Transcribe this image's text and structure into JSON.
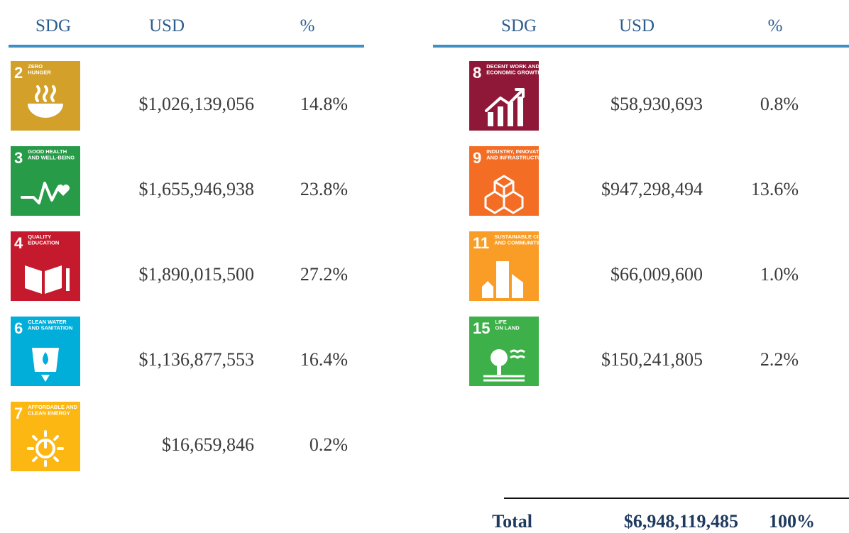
{
  "left": {
    "header": [
      "SDG",
      "USD",
      "%"
    ],
    "rows": [
      {
        "number": "2",
        "label": [
          "ZERO",
          "HUNGER"
        ],
        "color": "#D3A029",
        "usd": "$1,026,139,056",
        "pct": "14.8%"
      },
      {
        "number": "3",
        "label": [
          "GOOD HEALTH",
          "AND WELL-BEING"
        ],
        "color": "#279B48",
        "usd": "$1,655,946,938",
        "pct": "23.8%"
      },
      {
        "number": "4",
        "label": [
          "QUALITY",
          "EDUCATION"
        ],
        "color": "#C5192D",
        "usd": "$1,890,015,500",
        "pct": "27.2%"
      },
      {
        "number": "6",
        "label": [
          "CLEAN WATER",
          "AND SANITATION"
        ],
        "color": "#00AED9",
        "usd": "$1,136,877,553",
        "pct": "16.4%"
      },
      {
        "number": "7",
        "label": [
          "AFFORDABLE AND",
          "CLEAN ENERGY"
        ],
        "color": "#FDB713",
        "usd": "$16,659,846",
        "pct": "0.2%"
      }
    ]
  },
  "right": {
    "header": [
      "SDG",
      "USD",
      "%"
    ],
    "rows": [
      {
        "number": "8",
        "label": [
          "DECENT WORK AND",
          "ECONOMIC GROWTH"
        ],
        "color": "#8F1838",
        "usd": "$58,930,693",
        "pct": "0.8%"
      },
      {
        "number": "9",
        "label": [
          "INDUSTRY, INNOVATION",
          "AND INFRASTRUCTURE"
        ],
        "color": "#F36D25",
        "usd": "$947,298,494",
        "pct": "13.6%"
      },
      {
        "number": "11",
        "label": [
          "SUSTAINABLE CITIES",
          "AND COMMUNITIES"
        ],
        "color": "#F99D26",
        "usd": "$66,009,600",
        "pct": "1.0%"
      },
      {
        "number": "15",
        "label": [
          "LIFE",
          "ON LAND"
        ],
        "color": "#3EB049",
        "usd": "$150,241,805",
        "pct": "2.2%"
      }
    ]
  },
  "total": {
    "label": "Total",
    "usd": "$6,948,119,485",
    "pct": "100%"
  }
}
